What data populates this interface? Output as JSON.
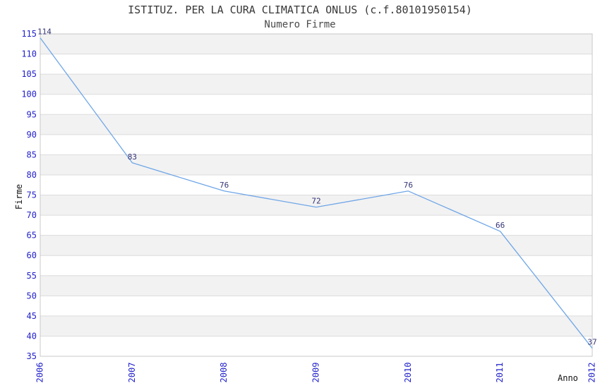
{
  "chart_data": {
    "type": "line",
    "title": "ISTITUZ. PER LA CURA CLIMATICA ONLUS (c.f.80101950154)",
    "subtitle": "Numero Firme",
    "xlabel": "Anno",
    "ylabel": "Firme",
    "x": [
      "2006",
      "2007",
      "2008",
      "2009",
      "2010",
      "2011",
      "2012"
    ],
    "series": [
      {
        "name": "Numero Firme",
        "values": [
          114,
          83,
          76,
          72,
          76,
          66,
          37
        ]
      }
    ],
    "data_labels": [
      "114",
      "83",
      "76",
      "72",
      "76",
      "66",
      "37"
    ],
    "ylim": [
      35,
      115
    ],
    "ytick_step": 5,
    "grid": "horizontal-bands",
    "legend_position": "none",
    "colors": {
      "line": "#6FA6E8",
      "tick_label": "#2222CC",
      "data_label": "#333377",
      "band_fill": "#F2F2F2",
      "gridline": "#DCDCDC",
      "plot_border": "#C8C8C8",
      "background": "#FFFFFF"
    }
  }
}
